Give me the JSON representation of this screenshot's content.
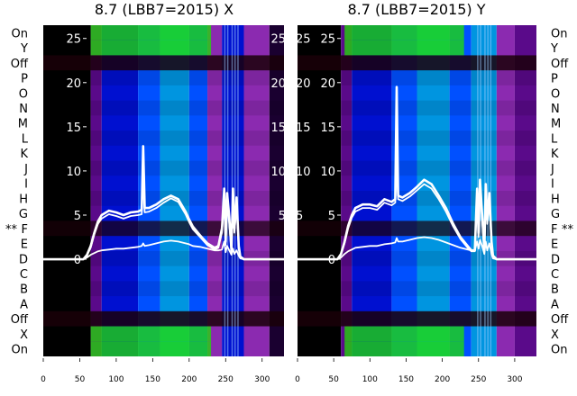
{
  "chart_data": [
    {
      "type": "heatmap",
      "title": "8.7 (LBB7=2015) X",
      "xlim": [
        0,
        330
      ],
      "x_ticks": [
        0,
        50,
        100,
        150,
        200,
        250,
        300
      ],
      "ylim": [
        -11,
        26.5
      ],
      "y_ticks": [
        0,
        5,
        10,
        15,
        20,
        25
      ],
      "row_labels": [
        "On",
        "Y",
        "Off",
        "P",
        "O",
        "N",
        "M",
        "L",
        "K",
        "J",
        "I",
        "H",
        "G",
        "F",
        "E",
        "D",
        "C",
        "B",
        "A",
        "Off",
        "X",
        "On"
      ],
      "marker": "**",
      "marked_row": "F",
      "marker_side": "left",
      "heatmap_colors": [
        "#000000",
        "#1a0030",
        "#5a0a8a",
        "#8b2ab0",
        "#0010d0",
        "#0050ff",
        "#0095e0",
        "#00c040",
        "#20e000"
      ],
      "heatmap_bands": [
        {
          "x": [
            0,
            65
          ],
          "level": 0
        },
        {
          "x": [
            65,
            80
          ],
          "level": 2
        },
        {
          "x": [
            80,
            130
          ],
          "level": 4
        },
        {
          "x": [
            130,
            160
          ],
          "level": 5
        },
        {
          "x": [
            160,
            200
          ],
          "level": 6
        },
        {
          "x": [
            200,
            225
          ],
          "level": 5
        },
        {
          "x": [
            225,
            245
          ],
          "level": 3
        },
        {
          "x": [
            245,
            275
          ],
          "level": 4
        },
        {
          "x": [
            275,
            310
          ],
          "level": 3
        },
        {
          "x": [
            310,
            330
          ],
          "level": 1
        }
      ],
      "dark_rows": [
        "Off",
        "F",
        "Off"
      ],
      "green_rows": [
        "Y",
        "X",
        "On"
      ],
      "series": [
        {
          "x": [
            0,
            55,
            60,
            65,
            70,
            75,
            80,
            90,
            100,
            110,
            120,
            130,
            135,
            137,
            139,
            145,
            155,
            165,
            175,
            185,
            195,
            200,
            205,
            215,
            225,
            235,
            240,
            245,
            248,
            250,
            252,
            255,
            258,
            260,
            262,
            265,
            268,
            270,
            275,
            285,
            300,
            315,
            330
          ],
          "y": [
            0,
            0,
            0.5,
            1.5,
            3.0,
            4.3,
            5.0,
            5.5,
            5.3,
            5.0,
            5.3,
            5.4,
            5.6,
            12.8,
            5.8,
            5.8,
            6.2,
            6.8,
            7.2,
            6.8,
            5.4,
            4.5,
            3.7,
            2.7,
            1.8,
            1.3,
            1.5,
            3.5,
            8.0,
            2.0,
            7.5,
            4.8,
            1.0,
            8.0,
            3.5,
            7.0,
            1.5,
            0.3,
            0,
            0,
            0,
            0,
            0
          ]
        },
        {
          "x": [
            0,
            55,
            60,
            65,
            70,
            75,
            80,
            90,
            100,
            110,
            120,
            130,
            135,
            137,
            139,
            145,
            155,
            165,
            175,
            185,
            195,
            200,
            205,
            215,
            225,
            235,
            240,
            245,
            248,
            250,
            252,
            255,
            258,
            260,
            262,
            265,
            268,
            270,
            275,
            285,
            300,
            315,
            330
          ],
          "y": [
            0,
            0,
            0.4,
            1.3,
            2.8,
            4.0,
            4.6,
            5.1,
            4.9,
            4.6,
            4.9,
            5.0,
            5.1,
            9.0,
            5.3,
            5.4,
            5.8,
            6.4,
            6.9,
            6.5,
            5.1,
            4.2,
            3.4,
            2.5,
            1.6,
            1.1,
            1.3,
            3.0,
            6.5,
            1.6,
            6.5,
            4.0,
            0.8,
            6.5,
            3.0,
            6.0,
            1.2,
            0.2,
            0,
            0,
            0,
            0,
            0
          ]
        },
        {
          "x": [
            0,
            55,
            60,
            65,
            70,
            75,
            80,
            90,
            100,
            110,
            120,
            130,
            135,
            137,
            139,
            145,
            155,
            165,
            175,
            185,
            195,
            200,
            205,
            215,
            225,
            235,
            240,
            245,
            248,
            250,
            252,
            255,
            258,
            260,
            262,
            265,
            268,
            270,
            275,
            285,
            300,
            315,
            330
          ],
          "y": [
            0,
            0,
            0.2,
            0.5,
            0.7,
            0.9,
            1.0,
            1.1,
            1.2,
            1.2,
            1.3,
            1.4,
            1.5,
            1.8,
            1.5,
            1.6,
            1.8,
            2.0,
            2.1,
            2.0,
            1.8,
            1.7,
            1.5,
            1.4,
            1.2,
            1.0,
            1.0,
            1.1,
            2.0,
            0.8,
            1.5,
            1.0,
            0.5,
            1.2,
            0.6,
            1.0,
            0.4,
            0.1,
            0,
            0,
            0,
            0,
            0
          ]
        }
      ]
    },
    {
      "type": "heatmap",
      "title": "8.7 (LBB7=2015) Y",
      "xlim": [
        0,
        330
      ],
      "x_ticks": [
        0,
        50,
        100,
        150,
        200,
        250,
        300
      ],
      "ylim": [
        -11,
        26.5
      ],
      "y_ticks": [
        0,
        5,
        10,
        15,
        20,
        25
      ],
      "row_labels": [
        "On",
        "Y",
        "Off",
        "P",
        "O",
        "N",
        "M",
        "L",
        "K",
        "J",
        "I",
        "H",
        "G",
        "F",
        "E",
        "D",
        "C",
        "B",
        "A",
        "Off",
        "X",
        "On"
      ],
      "marker": "**",
      "marked_row": "F",
      "marker_side": "right",
      "heatmap_colors": [
        "#000000",
        "#1a0030",
        "#5a0a8a",
        "#8b2ab0",
        "#0010d0",
        "#0050ff",
        "#0095e0",
        "#00c040",
        "#20e000"
      ],
      "heatmap_bands": [
        {
          "x": [
            0,
            60
          ],
          "level": 0
        },
        {
          "x": [
            60,
            75
          ],
          "level": 2
        },
        {
          "x": [
            75,
            130
          ],
          "level": 4
        },
        {
          "x": [
            130,
            165
          ],
          "level": 5
        },
        {
          "x": [
            165,
            210
          ],
          "level": 6
        },
        {
          "x": [
            210,
            240
          ],
          "level": 5
        },
        {
          "x": [
            240,
            275
          ],
          "level": 6
        },
        {
          "x": [
            275,
            300
          ],
          "level": 3
        },
        {
          "x": [
            300,
            330
          ],
          "level": 2
        }
      ],
      "dark_rows": [
        "Off",
        "F",
        "Off"
      ],
      "green_rows": [
        "Y",
        "X",
        "On"
      ],
      "series": [
        {
          "x": [
            0,
            55,
            60,
            65,
            70,
            75,
            80,
            90,
            100,
            110,
            120,
            130,
            135,
            137,
            139,
            145,
            155,
            165,
            175,
            185,
            195,
            205,
            215,
            225,
            235,
            240,
            245,
            248,
            250,
            252,
            255,
            258,
            260,
            262,
            265,
            268,
            270,
            275,
            285,
            300,
            315,
            330
          ],
          "y": [
            0,
            0,
            0.6,
            2.0,
            3.8,
            5.0,
            5.8,
            6.2,
            6.2,
            6.0,
            6.8,
            6.5,
            6.8,
            19.5,
            7.2,
            7.0,
            7.5,
            8.2,
            9.0,
            8.5,
            7.2,
            5.8,
            4.0,
            2.5,
            1.5,
            1.0,
            1.0,
            8.0,
            3.0,
            9.0,
            5.0,
            1.0,
            8.5,
            4.5,
            7.5,
            2.0,
            0.4,
            0,
            0,
            0,
            0,
            0
          ]
        },
        {
          "x": [
            0,
            55,
            60,
            65,
            70,
            75,
            80,
            90,
            100,
            110,
            120,
            130,
            135,
            137,
            139,
            145,
            155,
            165,
            175,
            185,
            195,
            205,
            215,
            225,
            235,
            240,
            245,
            248,
            250,
            252,
            255,
            258,
            260,
            262,
            265,
            268,
            270,
            275,
            285,
            300,
            315,
            330
          ],
          "y": [
            0,
            0,
            0.5,
            1.8,
            3.5,
            4.7,
            5.4,
            5.8,
            5.8,
            5.6,
            6.4,
            6.1,
            6.4,
            10.5,
            6.8,
            6.6,
            7.1,
            7.8,
            8.5,
            8.0,
            6.8,
            5.4,
            3.7,
            2.3,
            1.3,
            0.9,
            0.9,
            7.0,
            2.5,
            8.0,
            4.5,
            0.8,
            7.5,
            4.0,
            6.5,
            1.6,
            0.3,
            0,
            0,
            0,
            0,
            0
          ]
        },
        {
          "x": [
            0,
            55,
            60,
            65,
            70,
            75,
            80,
            90,
            100,
            110,
            120,
            130,
            135,
            137,
            139,
            145,
            155,
            165,
            175,
            185,
            195,
            205,
            215,
            225,
            235,
            240,
            245,
            248,
            250,
            252,
            255,
            258,
            260,
            262,
            265,
            268,
            270,
            275,
            285,
            300,
            315,
            330
          ],
          "y": [
            0,
            0,
            0.2,
            0.6,
            0.9,
            1.1,
            1.3,
            1.4,
            1.5,
            1.5,
            1.7,
            1.8,
            1.9,
            2.4,
            2.0,
            2.0,
            2.2,
            2.4,
            2.5,
            2.4,
            2.2,
            1.9,
            1.6,
            1.3,
            1.1,
            1.0,
            1.0,
            2.0,
            1.2,
            2.2,
            1.5,
            0.6,
            2.0,
            1.0,
            1.8,
            0.6,
            0.1,
            0,
            0,
            0,
            0,
            0
          ]
        }
      ]
    }
  ]
}
